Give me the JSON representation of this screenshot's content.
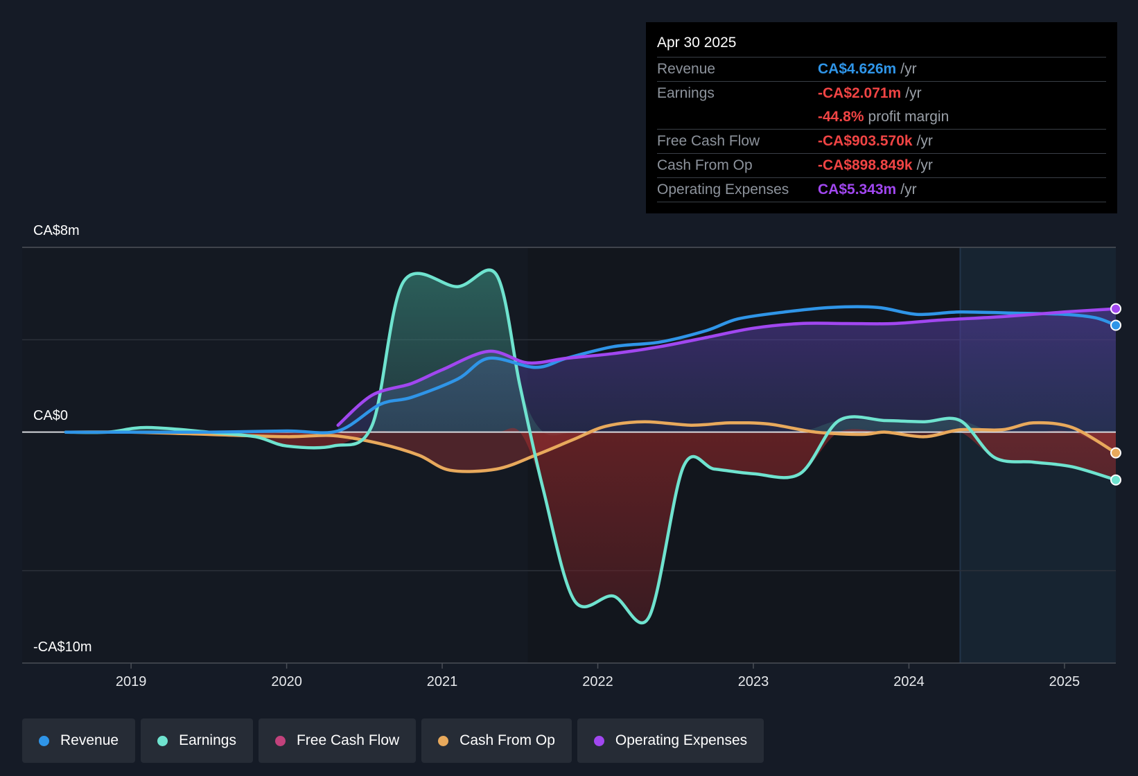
{
  "colors": {
    "revenue": "#2f95e8",
    "earnings": "#6fe3cf",
    "fcf": "#c2427c",
    "cfo": "#e8a95c",
    "opex": "#a147f0",
    "negative": "#f04444"
  },
  "tooltip": {
    "date": "Apr 30 2025",
    "rows": [
      {
        "label": "Revenue",
        "value": "CA$4.626m",
        "unit": "/yr",
        "color": "#2f95e8"
      },
      {
        "label": "Earnings",
        "value": "-CA$2.071m",
        "unit": "/yr",
        "color": "#f04444"
      },
      {
        "label": "",
        "value": "-44.8%",
        "unit": "profit margin",
        "color": "#f04444"
      },
      {
        "label": "Free Cash Flow",
        "value": "-CA$903.570k",
        "unit": "/yr",
        "color": "#f04444"
      },
      {
        "label": "Cash From Op",
        "value": "-CA$898.849k",
        "unit": "/yr",
        "color": "#f04444"
      },
      {
        "label": "Operating Expenses",
        "value": "CA$5.343m",
        "unit": "/yr",
        "color": "#a147f0"
      }
    ]
  },
  "legend": [
    {
      "label": "Revenue",
      "color": "#2f95e8"
    },
    {
      "label": "Earnings",
      "color": "#6fe3cf"
    },
    {
      "label": "Free Cash Flow",
      "color": "#c2427c"
    },
    {
      "label": "Cash From Op",
      "color": "#e8a95c"
    },
    {
      "label": "Operating Expenses",
      "color": "#a147f0"
    }
  ],
  "chart_data": {
    "type": "line",
    "title": "",
    "y_labels": {
      "top": "CA$8m",
      "zero": "CA$0",
      "bottom": "-CA$10m"
    },
    "ylim": [
      -10,
      8
    ],
    "xlim": [
      2018.3,
      2025.33
    ],
    "x_ticks": [
      {
        "label": "2019",
        "value": 2019.0
      },
      {
        "label": "2020",
        "value": 2020.0
      },
      {
        "label": "2021",
        "value": 2021.0
      },
      {
        "label": "2022",
        "value": 2022.0
      },
      {
        "label": "2023",
        "value": 2023.0
      },
      {
        "label": "2024",
        "value": 2024.0
      },
      {
        "label": "2025",
        "value": 2025.0
      }
    ],
    "forecast_start": 2024.33,
    "series": [
      {
        "name": "Revenue",
        "key": "revenue",
        "points": [
          [
            2018.58,
            0.0
          ],
          [
            2019.0,
            0.0
          ],
          [
            2019.5,
            0.0
          ],
          [
            2020.0,
            0.05
          ],
          [
            2020.33,
            0.05
          ],
          [
            2020.6,
            1.2
          ],
          [
            2020.8,
            1.5
          ],
          [
            2021.1,
            2.3
          ],
          [
            2021.3,
            3.2
          ],
          [
            2021.6,
            2.8
          ],
          [
            2021.8,
            3.2
          ],
          [
            2022.1,
            3.7
          ],
          [
            2022.4,
            3.9
          ],
          [
            2022.7,
            4.4
          ],
          [
            2022.9,
            4.9
          ],
          [
            2023.2,
            5.2
          ],
          [
            2023.5,
            5.4
          ],
          [
            2023.8,
            5.4
          ],
          [
            2024.05,
            5.1
          ],
          [
            2024.33,
            5.2
          ],
          [
            2024.7,
            5.15
          ],
          [
            2025.0,
            5.1
          ],
          [
            2025.2,
            4.95
          ],
          [
            2025.33,
            4.626
          ]
        ]
      },
      {
        "name": "Earnings",
        "key": "earnings",
        "points": [
          [
            2018.58,
            0.0
          ],
          [
            2018.85,
            0.0
          ],
          [
            2019.1,
            0.2
          ],
          [
            2019.5,
            0.0
          ],
          [
            2019.8,
            -0.2
          ],
          [
            2020.0,
            -0.6
          ],
          [
            2020.3,
            -0.6
          ],
          [
            2020.55,
            0.3
          ],
          [
            2020.75,
            6.5
          ],
          [
            2021.1,
            6.3
          ],
          [
            2021.35,
            6.8
          ],
          [
            2021.5,
            2.0
          ],
          [
            2021.65,
            -2.5
          ],
          [
            2021.85,
            -7.3
          ],
          [
            2022.1,
            -7.1
          ],
          [
            2022.33,
            -8.0
          ],
          [
            2022.55,
            -1.5
          ],
          [
            2022.75,
            -1.6
          ],
          [
            2023.0,
            -1.8
          ],
          [
            2023.3,
            -1.8
          ],
          [
            2023.55,
            0.5
          ],
          [
            2023.85,
            0.5
          ],
          [
            2024.1,
            0.45
          ],
          [
            2024.33,
            0.5
          ],
          [
            2024.55,
            -1.1
          ],
          [
            2024.8,
            -1.3
          ],
          [
            2025.05,
            -1.5
          ],
          [
            2025.33,
            -2.071
          ]
        ]
      },
      {
        "name": "Cash From Op",
        "key": "cfo",
        "points": [
          [
            2018.58,
            0.0
          ],
          [
            2019.0,
            0.0
          ],
          [
            2019.5,
            -0.1
          ],
          [
            2020.0,
            -0.2
          ],
          [
            2020.3,
            -0.15
          ],
          [
            2020.6,
            -0.5
          ],
          [
            2020.85,
            -1.0
          ],
          [
            2021.05,
            -1.65
          ],
          [
            2021.35,
            -1.6
          ],
          [
            2021.6,
            -1.0
          ],
          [
            2021.85,
            -0.3
          ],
          [
            2022.05,
            0.25
          ],
          [
            2022.3,
            0.45
          ],
          [
            2022.6,
            0.3
          ],
          [
            2022.85,
            0.4
          ],
          [
            2023.1,
            0.35
          ],
          [
            2023.4,
            0.0
          ],
          [
            2023.7,
            -0.1
          ],
          [
            2023.85,
            0.0
          ],
          [
            2024.1,
            -0.2
          ],
          [
            2024.33,
            0.1
          ],
          [
            2024.6,
            0.1
          ],
          [
            2024.8,
            0.4
          ],
          [
            2025.05,
            0.2
          ],
          [
            2025.33,
            -0.899
          ]
        ]
      },
      {
        "name": "Operating Expenses",
        "key": "opex",
        "points": [
          [
            2020.33,
            0.3
          ],
          [
            2020.55,
            1.6
          ],
          [
            2020.8,
            2.1
          ],
          [
            2021.0,
            2.7
          ],
          [
            2021.3,
            3.5
          ],
          [
            2021.55,
            3.0
          ],
          [
            2021.8,
            3.2
          ],
          [
            2022.1,
            3.4
          ],
          [
            2022.4,
            3.7
          ],
          [
            2022.7,
            4.1
          ],
          [
            2023.0,
            4.5
          ],
          [
            2023.3,
            4.7
          ],
          [
            2023.6,
            4.7
          ],
          [
            2023.9,
            4.7
          ],
          [
            2024.2,
            4.85
          ],
          [
            2024.6,
            5.0
          ],
          [
            2025.0,
            5.2
          ],
          [
            2025.33,
            5.343
          ]
        ]
      }
    ]
  }
}
